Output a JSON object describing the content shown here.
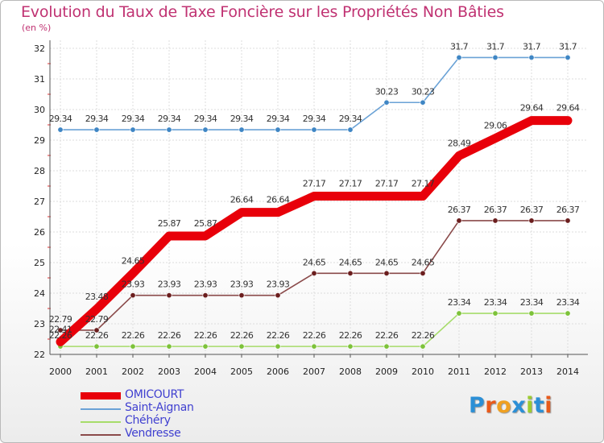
{
  "title": "Evolution du Taux de Taxe Foncière sur les Propriétés Non Bâties",
  "unit_label": "(en %)",
  "logo": {
    "text": "Proxiti",
    "colors": [
      "#2b8fd6",
      "#e85a1b",
      "#f0a020",
      "#2b8fd6",
      "#9ccc30",
      "#2b8fd6",
      "#e85a1b"
    ]
  },
  "chart_data": {
    "type": "line",
    "title": "Evolution du Taux de Taxe Foncière sur les Propriétés Non Bâties",
    "ylabel": "(en %)",
    "xlabel": "",
    "x": [
      2000,
      2001,
      2002,
      2003,
      2004,
      2005,
      2006,
      2007,
      2008,
      2009,
      2010,
      2011,
      2012,
      2013,
      2014
    ],
    "ylim": [
      22,
      32
    ],
    "yticks": [
      22,
      23,
      24,
      25,
      26,
      27,
      28,
      29,
      30,
      31,
      32
    ],
    "grid": true,
    "legend_position": "bottom-left",
    "series": [
      {
        "name": "OMICOURT",
        "color": "#e8000a",
        "thick": true,
        "values": [
          22.41,
          23.48,
          24.65,
          25.87,
          25.87,
          26.64,
          26.64,
          27.17,
          27.17,
          27.17,
          27.17,
          28.49,
          29.06,
          29.64,
          29.64
        ],
        "labels": [
          "22.41",
          "23.48",
          "24.65",
          "25.87",
          "25.87",
          "26.64",
          "26.64",
          "27.17",
          "27.17",
          "27.17",
          "27.17",
          "28.49",
          "29.06",
          "29.64",
          "29.64"
        ]
      },
      {
        "name": "Saint-Aignan",
        "color": "#6aa2d6",
        "point": "#3f86c4",
        "thick": false,
        "values": [
          29.34,
          29.34,
          29.34,
          29.34,
          29.34,
          29.34,
          29.34,
          29.34,
          29.34,
          30.23,
          30.23,
          31.7,
          31.7,
          31.7,
          31.7
        ],
        "labels": [
          "29.34",
          "29.34",
          "29.34",
          "29.34",
          "29.34",
          "29.34",
          "29.34",
          "29.34",
          "29.34",
          "30.23",
          "30.23",
          "31.7",
          "31.7",
          "31.7",
          "31.7"
        ]
      },
      {
        "name": "Chéhéry",
        "color": "#a6dc6a",
        "point": "#7dc23a",
        "thick": false,
        "values": [
          22.26,
          22.26,
          22.26,
          22.26,
          22.26,
          22.26,
          22.26,
          22.26,
          22.26,
          22.26,
          22.26,
          23.34,
          23.34,
          23.34,
          23.34
        ],
        "labels": [
          "22.26",
          "22.26",
          "22.26",
          "22.26",
          "22.26",
          "22.26",
          "22.26",
          "22.26",
          "22.26",
          "22.26",
          "22.26",
          "23.34",
          "23.34",
          "23.34",
          "23.34"
        ]
      },
      {
        "name": "Vendresse",
        "color": "#8a4a4a",
        "point": "#6b1e1e",
        "thick": false,
        "values": [
          22.79,
          22.79,
          23.93,
          23.93,
          23.93,
          23.93,
          23.93,
          24.65,
          24.65,
          24.65,
          24.65,
          26.37,
          26.37,
          26.37,
          26.37
        ],
        "labels": [
          "22.79",
          "22.79",
          "23.93",
          "23.93",
          "23.93",
          "23.93",
          "23.93",
          "24.65",
          "24.65",
          "24.65",
          "24.65",
          "26.37",
          "26.37",
          "26.37",
          "26.37"
        ]
      }
    ]
  }
}
